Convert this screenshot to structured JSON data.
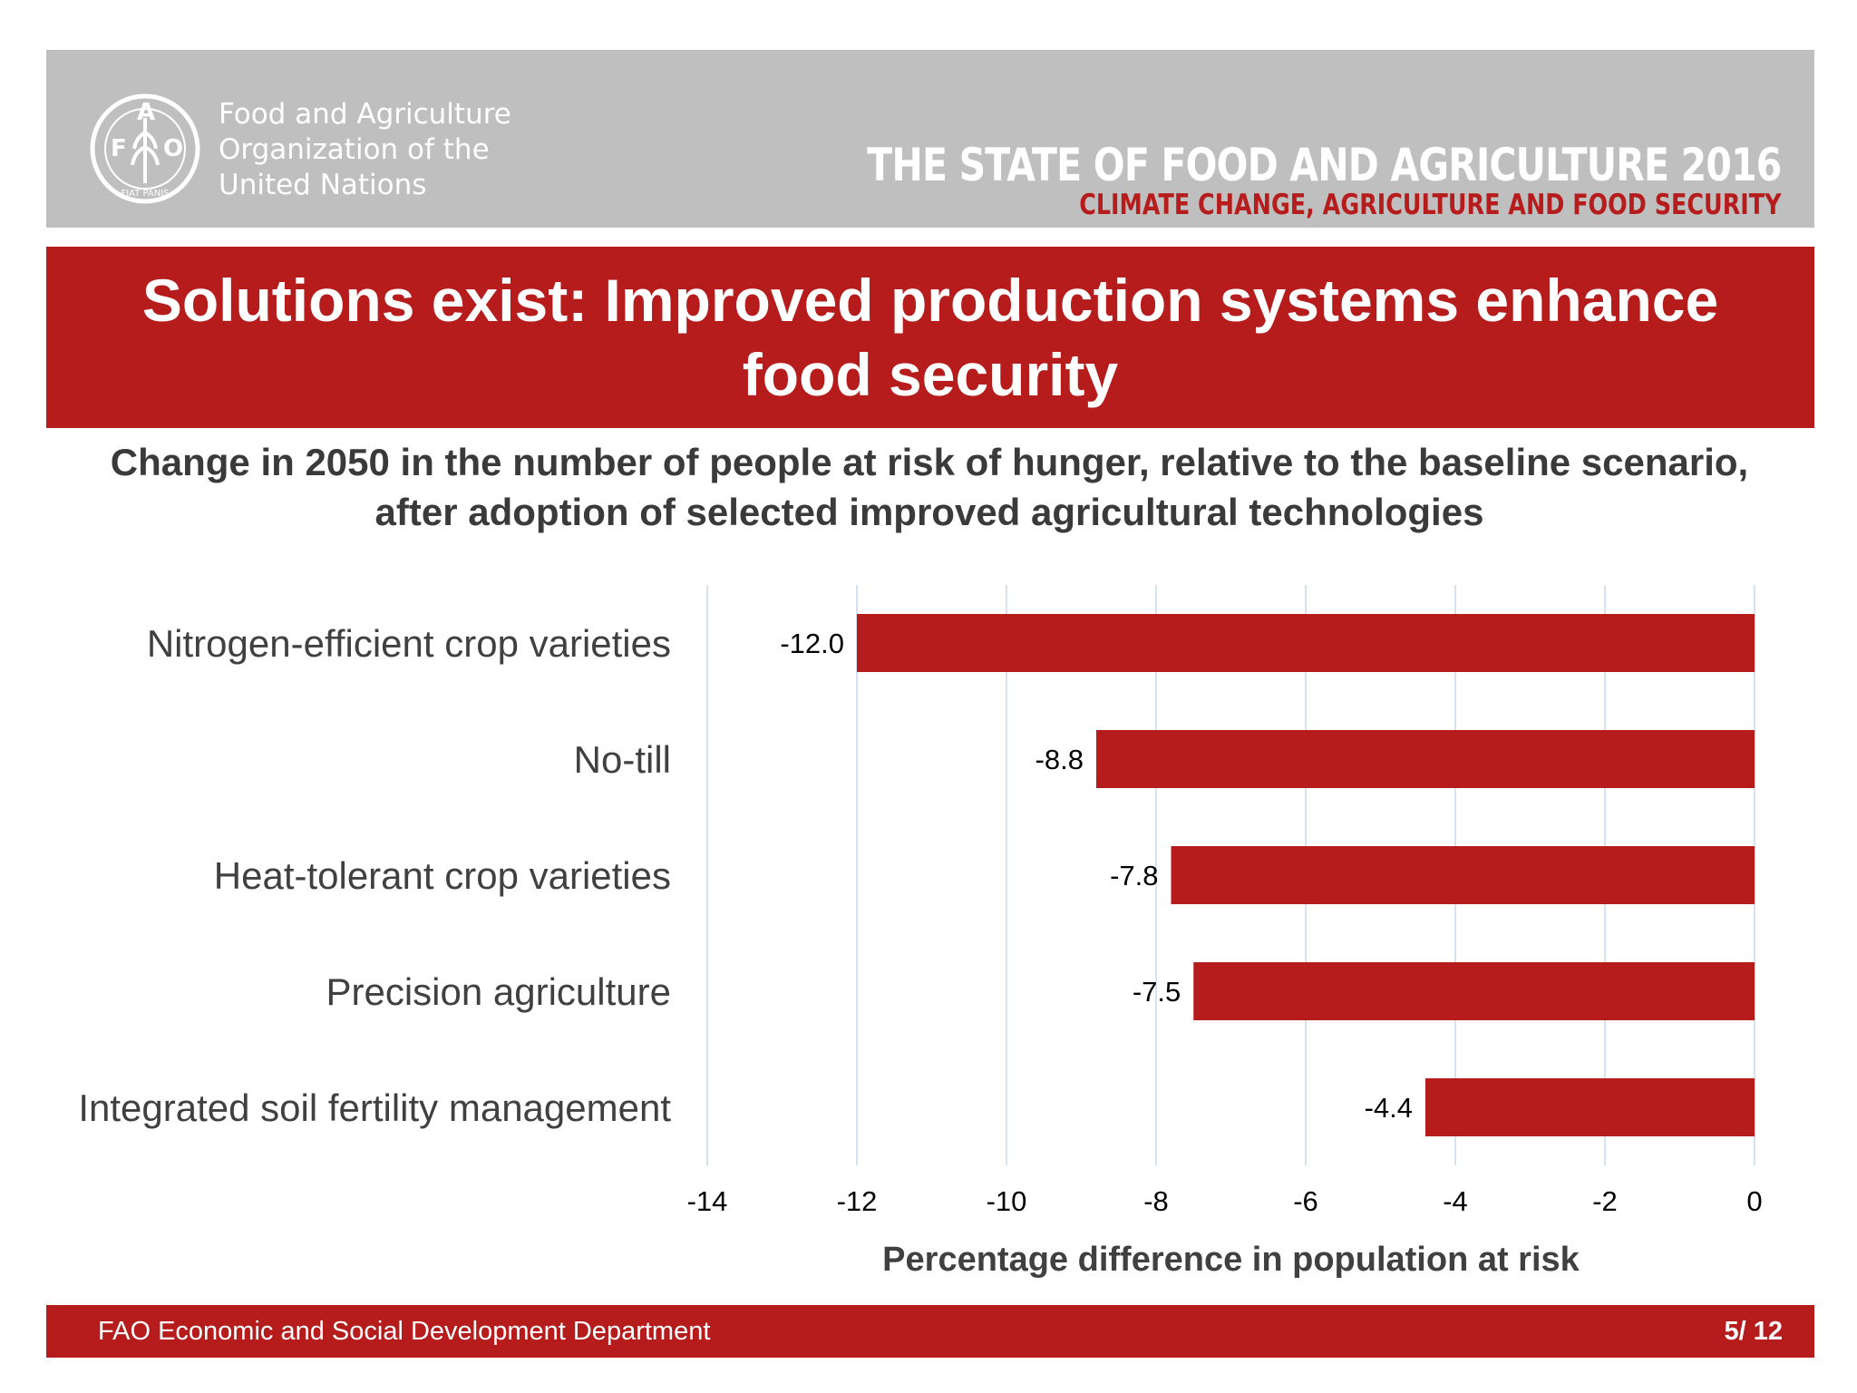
{
  "header": {
    "org_name_lines": [
      "Food and Agriculture",
      "Organization of the",
      "United Nations"
    ],
    "logo_letters": [
      "F",
      "A",
      "O"
    ],
    "logo_motto": "FIAT PANIS",
    "report_title": "THE STATE OF FOOD AND AGRICULTURE 2016",
    "report_subtitle": "CLIMATE CHANGE, AGRICULTURE AND FOOD SECURITY"
  },
  "slide": {
    "title": "Solutions exist:  Improved production systems enhance food security",
    "subtitle": "Change in 2050 in the number of people at risk of hunger, relative to the baseline scenario, after adoption of selected improved agricultural technologies"
  },
  "chart_data": {
    "type": "bar",
    "orientation": "horizontal",
    "categories": [
      "Nitrogen-efficient crop varieties",
      "No-till",
      "Heat-tolerant crop varieties",
      "Precision agriculture",
      "Integrated soil fertility management"
    ],
    "values": [
      -12.0,
      -8.8,
      -7.8,
      -7.5,
      -4.4
    ],
    "data_labels": [
      "-12.0",
      "-8.8",
      "-7.8",
      "-7.5",
      "-4.4"
    ],
    "xlim": [
      -14,
      0
    ],
    "xticks": [
      -14,
      -12,
      -10,
      -8,
      -6,
      -4,
      -2,
      0
    ],
    "xlabel": "Percentage difference in population at risk",
    "ylabel": "",
    "grid": true,
    "bar_color": "#b71c1c",
    "grid_color": "#d6e2ee"
  },
  "footer": {
    "department": "FAO Economic and Social Development Department",
    "page": "5/ 12"
  }
}
